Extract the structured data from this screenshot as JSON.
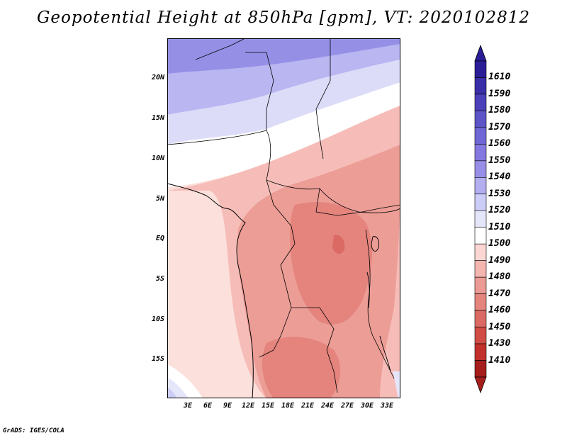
{
  "title": "Geopotential Height at 850hPa [gpm], VT: 2020102812",
  "credit": "GrADS: IGES/COLA",
  "map": {
    "lat_labels": [
      "20N",
      "15N",
      "10N",
      "5N",
      "EQ",
      "5S",
      "10S",
      "15S"
    ],
    "lon_labels": [
      "3E",
      "6E",
      "9E",
      "12E",
      "15E",
      "18E",
      "21E",
      "24E",
      "27E",
      "30E",
      "33E"
    ]
  },
  "colorbar": {
    "labels": [
      "1610",
      "1590",
      "1580",
      "1570",
      "1560",
      "1550",
      "1540",
      "1530",
      "1520",
      "1510",
      "1500",
      "1490",
      "1480",
      "1470",
      "1460",
      "1450",
      "1430",
      "1410"
    ],
    "colors": [
      "#2a1d96",
      "#3a2ea8",
      "#4c40ba",
      "#5e54c8",
      "#7066d6",
      "#8478e0",
      "#988ee8",
      "#b3aef0",
      "#cccdf6",
      "#e6e6fb",
      "#ffffff",
      "#fcd6d2",
      "#f5b5b0",
      "#ec9a94",
      "#e4847d",
      "#dc6a64",
      "#d24c46",
      "#c2302c",
      "#a61e1c"
    ]
  }
}
